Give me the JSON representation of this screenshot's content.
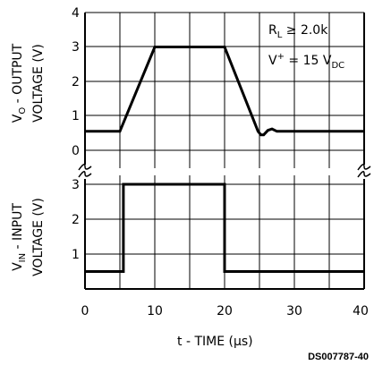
{
  "chart_data": [
    {
      "type": "line",
      "panel": "top",
      "ylabel": "V",
      "ylabel_sub": "O",
      "ylabel_rest": " - OUTPUT",
      "ylabel_line2": "VOLTAGE (V)",
      "ylim": [
        0,
        4
      ],
      "y_ticks": [
        "0",
        "1",
        "2",
        "3",
        "4"
      ],
      "xlim": [
        0,
        40
      ],
      "annotations": [
        {
          "main": "R",
          "sub": "L",
          "rest": " ≥ 2.0k"
        },
        {
          "main": "V",
          "sup": "+",
          "rest": " = 15 V",
          "sub2": "DC"
        }
      ],
      "series": [
        {
          "x": [
            0,
            5,
            10,
            20,
            24.8,
            25.2,
            25.6,
            26.2,
            26.8,
            27.5,
            40
          ],
          "y": [
            0.55,
            0.55,
            3.0,
            3.0,
            0.55,
            0.45,
            0.45,
            0.58,
            0.62,
            0.55,
            0.55
          ]
        }
      ]
    },
    {
      "type": "line",
      "panel": "bottom",
      "ylabel": "V",
      "ylabel_sub": "IN",
      "ylabel_rest": " - INPUT",
      "ylabel_line2": "VOLTAGE (V)",
      "ylim": [
        0,
        3.5
      ],
      "y_ticks": [
        "1",
        "2",
        "3"
      ],
      "xlim": [
        0,
        40
      ],
      "x_ticks": [
        "0",
        "10",
        "20",
        "30",
        "40"
      ],
      "xlabel": "t - TIME (",
      "xlabel_unit": "μs)",
      "series": [
        {
          "x": [
            0,
            5.5,
            5.5,
            20,
            20,
            40
          ],
          "y": [
            0.5,
            0.5,
            3.0,
            3.0,
            0.5,
            0.5
          ]
        }
      ]
    }
  ],
  "figure_id": "DS007787-40"
}
